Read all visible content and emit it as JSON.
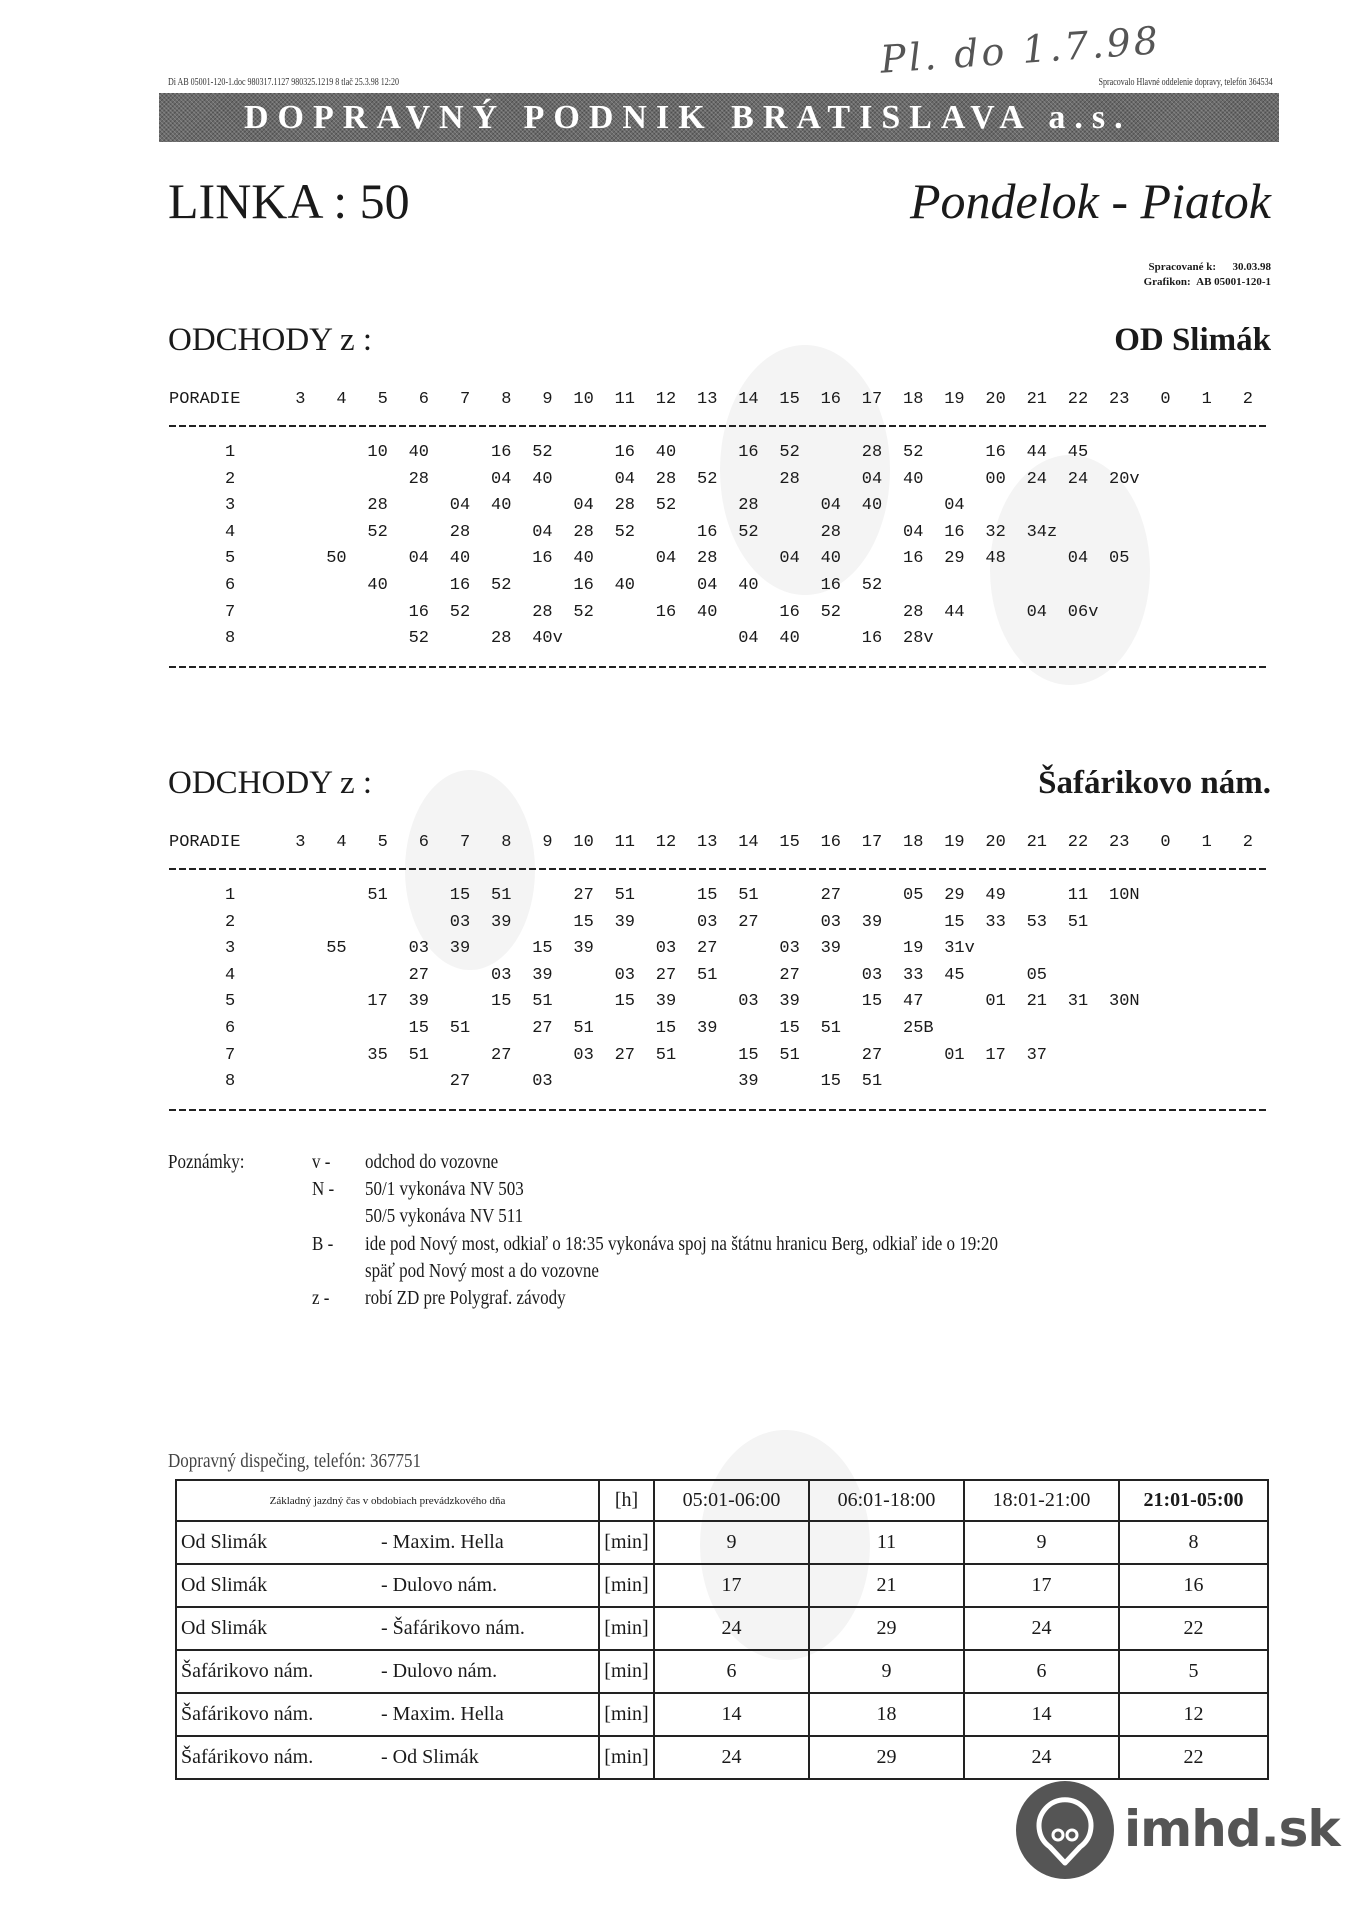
{
  "handwritten_note": "Pl. do 1.7.98",
  "header": {
    "file_info": "Di AB 05001-120-1.doc 980317.1127 980325.1219 8 tlač 25.3.98 12:20",
    "processed_by": "Spracovalo Hlavné oddelenie dopravy, telefón 364534",
    "company": "DOPRAVNÝ PODNIK BRATISLAVA  a.s.",
    "line": "LINKA : 50",
    "days": "Pondelok - Piatok",
    "processed_to_label": "Spracované k:",
    "processed_to_value": "30.03.98",
    "grafikon_label": "Grafikon:",
    "grafikon_value": "AB 05001-120-1"
  },
  "schedules": [
    {
      "title": "ODCHODY z :",
      "stop": "OD Slimák",
      "poradie_label": "PORADIE",
      "hours": [
        "3",
        "4",
        "5",
        "6",
        "7",
        "8",
        "9",
        "10",
        "11",
        "12",
        "13",
        "14",
        "15",
        "16",
        "17",
        "18",
        "19",
        "20",
        "21",
        "22",
        "23",
        "0",
        "1",
        "2"
      ],
      "rows": [
        {
          "n": "1",
          "cells": [
            "",
            "",
            "10",
            "40",
            "",
            "16",
            "52",
            "",
            "16",
            "40",
            "",
            "16",
            "52",
            "",
            "28",
            "52",
            "",
            "16",
            "44",
            "45",
            "",
            "",
            "",
            ""
          ]
        },
        {
          "n": "2",
          "cells": [
            "",
            "",
            "",
            "28",
            "",
            "04",
            "40",
            "",
            "04",
            "28",
            "52",
            "",
            "28",
            "",
            "04",
            "40",
            "",
            "00",
            "24",
            "24",
            "20v",
            "",
            "",
            ""
          ]
        },
        {
          "n": "3",
          "cells": [
            "",
            "",
            "28",
            "",
            "04",
            "40",
            "",
            "04",
            "28",
            "52",
            "",
            "28",
            "",
            "04",
            "40",
            "",
            "04",
            "",
            "",
            "",
            "",
            "",
            "",
            ""
          ]
        },
        {
          "n": "4",
          "cells": [
            "",
            "",
            "52",
            "",
            "28",
            "",
            "04",
            "28",
            "52",
            "",
            "16",
            "52",
            "",
            "28",
            "",
            "04",
            "16",
            "32",
            "34z",
            "",
            "",
            "",
            "",
            ""
          ]
        },
        {
          "n": "5",
          "cells": [
            "",
            "50",
            "",
            "04",
            "40",
            "",
            "16",
            "40",
            "",
            "04",
            "28",
            "",
            "04",
            "40",
            "",
            "16",
            "29",
            "48",
            "",
            "04",
            "05",
            "",
            "",
            ""
          ]
        },
        {
          "n": "6",
          "cells": [
            "",
            "",
            "40",
            "",
            "16",
            "52",
            "",
            "16",
            "40",
            "",
            "04",
            "40",
            "",
            "16",
            "52",
            "",
            "",
            "",
            "",
            "",
            "",
            "",
            "",
            ""
          ]
        },
        {
          "n": "7",
          "cells": [
            "",
            "",
            "",
            "16",
            "52",
            "",
            "28",
            "52",
            "",
            "16",
            "40",
            "",
            "16",
            "52",
            "",
            "28",
            "44",
            "",
            "04",
            "06v",
            "",
            "",
            "",
            ""
          ]
        },
        {
          "n": "8",
          "cells": [
            "",
            "",
            "",
            "52",
            "",
            "28",
            "40v",
            "",
            "",
            "",
            "",
            "04",
            "40",
            "",
            "16",
            "28v",
            "",
            "",
            "",
            "",
            "",
            "",
            "",
            ""
          ]
        }
      ]
    },
    {
      "title": "ODCHODY z :",
      "stop": "Šafárikovo nám.",
      "poradie_label": "PORADIE",
      "hours": [
        "3",
        "4",
        "5",
        "6",
        "7",
        "8",
        "9",
        "10",
        "11",
        "12",
        "13",
        "14",
        "15",
        "16",
        "17",
        "18",
        "19",
        "20",
        "21",
        "22",
        "23",
        "0",
        "1",
        "2"
      ],
      "rows": [
        {
          "n": "1",
          "cells": [
            "",
            "",
            "51",
            "",
            "15",
            "51",
            "",
            "27",
            "51",
            "",
            "15",
            "51",
            "",
            "27",
            "",
            "05",
            "29",
            "49",
            "",
            "11",
            "10N",
            "",
            "",
            ""
          ]
        },
        {
          "n": "2",
          "cells": [
            "",
            "",
            "",
            "",
            "03",
            "39",
            "",
            "15",
            "39",
            "",
            "03",
            "27",
            "",
            "03",
            "39",
            "",
            "15",
            "33",
            "53",
            "51",
            "",
            "",
            "",
            ""
          ]
        },
        {
          "n": "3",
          "cells": [
            "",
            "55",
            "",
            "03",
            "39",
            "",
            "15",
            "39",
            "",
            "03",
            "27",
            "",
            "03",
            "39",
            "",
            "19",
            "31v",
            "",
            "",
            "",
            "",
            "",
            "",
            ""
          ]
        },
        {
          "n": "4",
          "cells": [
            "",
            "",
            "",
            "27",
            "",
            "03",
            "39",
            "",
            "03",
            "27",
            "51",
            "",
            "27",
            "",
            "03",
            "33",
            "45",
            "",
            "05",
            "",
            "",
            "",
            "",
            ""
          ]
        },
        {
          "n": "5",
          "cells": [
            "",
            "",
            "17",
            "39",
            "",
            "15",
            "51",
            "",
            "15",
            "39",
            "",
            "03",
            "39",
            "",
            "15",
            "47",
            "",
            "01",
            "21",
            "31",
            "30N",
            "",
            "",
            ""
          ]
        },
        {
          "n": "6",
          "cells": [
            "",
            "",
            "",
            "15",
            "51",
            "",
            "27",
            "51",
            "",
            "15",
            "39",
            "",
            "15",
            "51",
            "",
            "25B",
            "",
            "",
            "",
            "",
            "",
            "",
            "",
            ""
          ]
        },
        {
          "n": "7",
          "cells": [
            "",
            "",
            "35",
            "51",
            "",
            "27",
            "",
            "03",
            "27",
            "51",
            "",
            "15",
            "51",
            "",
            "27",
            "",
            "01",
            "17",
            "37",
            "",
            "",
            "",
            "",
            ""
          ]
        },
        {
          "n": "8",
          "cells": [
            "",
            "",
            "",
            "",
            "27",
            "",
            "03",
            "",
            "",
            "",
            "",
            "39",
            "",
            "15",
            "51",
            "",
            "",
            "",
            "",
            "",
            "",
            "",
            "",
            ""
          ]
        }
      ]
    }
  ],
  "notes": {
    "label": "Poznámky:",
    "items": [
      {
        "key": "v -",
        "text": "odchod do vozovne"
      },
      {
        "key": "N -",
        "text": "50/1 vykonáva NV 503"
      },
      {
        "key": "",
        "text": "50/5 vykonáva NV 511"
      },
      {
        "key": "B -",
        "text": "ide pod Nový most, odkiaľ o 18:35 vykonáva spoj na štátnu hranicu Berg, odkiaľ ide o 19:20"
      },
      {
        "key": "",
        "text": "späť pod Nový most a do vozovne"
      },
      {
        "key": "z -",
        "text": "robí ZD pre Polygraf. závody"
      }
    ]
  },
  "dispatch": "Dopravný dispečing, telefón:  367751",
  "travel_times": {
    "header": [
      "Základný jazdný čas v obdobiach prevádzkového dňa",
      "[h]",
      "05:01-06:00",
      "06:01-18:00",
      "18:01-21:00",
      "21:01-05:00"
    ],
    "rows": [
      {
        "from": "Od Slimák",
        "to": "- Maxim. Hella",
        "unit": "[min]",
        "values": [
          "9",
          "11",
          "9",
          "8"
        ]
      },
      {
        "from": "Od Slimák",
        "to": "- Dulovo nám.",
        "unit": "[min]",
        "values": [
          "17",
          "21",
          "17",
          "16"
        ]
      },
      {
        "from": "Od Slimák",
        "to": "- Šafárikovo nám.",
        "unit": "[min]",
        "values": [
          "24",
          "29",
          "24",
          "22"
        ]
      },
      {
        "from": "Šafárikovo nám.",
        "to": "- Dulovo nám.",
        "unit": "[min]",
        "values": [
          "6",
          "9",
          "6",
          "5"
        ]
      },
      {
        "from": "Šafárikovo nám.",
        "to": "- Maxim. Hella",
        "unit": "[min]",
        "values": [
          "14",
          "18",
          "14",
          "12"
        ]
      },
      {
        "from": "Šafárikovo nám.",
        "to": "- Od Slimák",
        "unit": "[min]",
        "values": [
          "24",
          "29",
          "24",
          "22"
        ]
      }
    ]
  },
  "logo": {
    "text": "imhd.sk",
    "color": "#555555"
  }
}
